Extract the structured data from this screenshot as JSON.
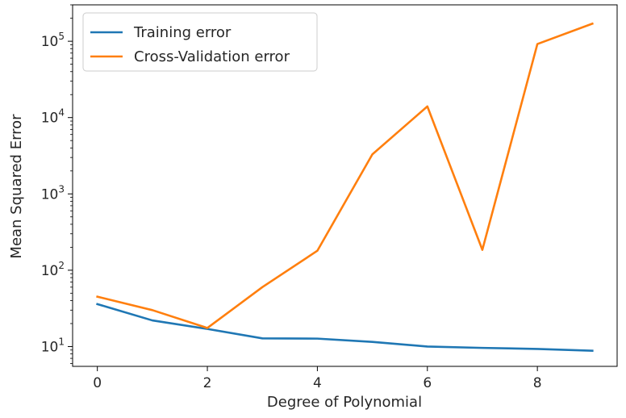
{
  "chart_data": {
    "type": "line",
    "title": "",
    "xlabel": "Degree of Polynomial",
    "ylabel": "Mean Squared Error",
    "yscale": "log",
    "xlim": [
      -0.45,
      9.45
    ],
    "ylim": [
      5.5,
      300000
    ],
    "xticks": [
      0,
      2,
      4,
      6,
      8
    ],
    "yticks": [
      {
        "value": 10,
        "base": "10",
        "exp": "1"
      },
      {
        "value": 100,
        "base": "10",
        "exp": "2"
      },
      {
        "value": 1000,
        "base": "10",
        "exp": "3"
      },
      {
        "value": 10000,
        "base": "10",
        "exp": "4"
      },
      {
        "value": 100000,
        "base": "10",
        "exp": "5"
      }
    ],
    "x": [
      0,
      1,
      2,
      3,
      4,
      5,
      6,
      7,
      8,
      9
    ],
    "series": [
      {
        "name": "Training error",
        "color": "#1f77b4",
        "values": [
          36,
          22,
          17,
          12.8,
          12.7,
          11.5,
          10,
          9.6,
          9.3,
          8.8
        ]
      },
      {
        "name": "Cross-Validation error",
        "color": "#ff7f0e",
        "values": [
          45,
          30,
          17.5,
          60,
          180,
          3300,
          14000,
          185,
          92000,
          170000
        ]
      }
    ],
    "legend_position": "top-left"
  }
}
